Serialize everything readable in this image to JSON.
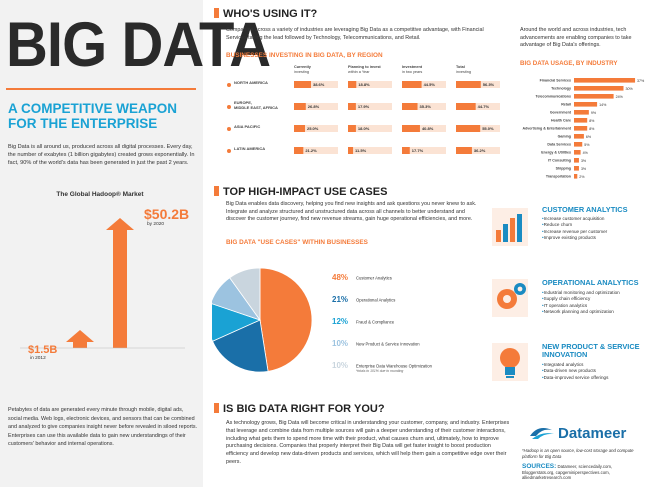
{
  "header": {
    "title": "BIG DATA",
    "subtitle_line1": "A COMPETITIVE WEAPON",
    "subtitle_line2": "FOR THE ENTERPRISE",
    "intro": "Big Data is all around us, produced across all digital processes. Every day, the number of exabytes (1 billion gigabytes) created grows exponentially. In fact, 90% of the world's data has been generated in just the past 2 years."
  },
  "hadoop": {
    "title": "The Global Hadoop® Market",
    "big_value": "$50.2B",
    "big_note": "by 2020",
    "small_value": "$1.5B",
    "small_note": "in 2012"
  },
  "left_bottom_text": "Petabytes of data are generated every minute through mobile, digital ads, social media. Web logs, electronic devices, and sensors that can be combined and analyzed to give companies insight never before revealed in siloed reports. Enterprises can use this available data to gain new understandings of their customers' behavior and internal operations.",
  "whos_using": {
    "title": "WHO'S USING IT?",
    "text": "Companies across a variety of industries are leveraging Big Data as a competitive advantage, with Financial Services taking the lead followed by Technology, Telecommunications, and Retail.",
    "right_text": "Around the world and across industries, tech advancements are enabling companies to take advantage of Big Data's offerings.",
    "region_title": "BUSINESSES INVESTING IN BIG DATA, BY REGION",
    "columns": [
      "Currently\ninvesting",
      "Planning to invest\nwithin a Year",
      "Investment\nin two years",
      "Total\ninvesting"
    ],
    "rows": [
      {
        "region": "NORTH AMERICA",
        "values": [
          "38.6%",
          "18.8%",
          "44.5%",
          "56.3%"
        ]
      },
      {
        "region": "EUROPE, MIDDLE EAST, AFRICA",
        "values": [
          "26.8%",
          "17.9%",
          "35.3%",
          "44.7%"
        ]
      },
      {
        "region": "ASIA PACIFIC",
        "values": [
          "25.0%",
          "18.0%",
          "40.8%",
          "55.0%"
        ]
      },
      {
        "region": "LATIN AMERICA",
        "values": [
          "21.2%",
          "11.5%",
          "17.7%",
          "36.2%"
        ]
      }
    ]
  },
  "usage": {
    "title": "BIG DATA USAGE, BY INDUSTRY"
  },
  "chart_data": [
    {
      "type": "bar",
      "title": "The Global Hadoop® Market",
      "categories": [
        "2012",
        "2020"
      ],
      "values": [
        1.5,
        50.2
      ],
      "ylabel": "",
      "xlabel": ""
    },
    {
      "type": "bar",
      "title": "BUSINESSES INVESTING IN BIG DATA, BY REGION",
      "categories": [
        "NORTH AMERICA",
        "EUROPE, MIDDLE EAST, AFRICA",
        "ASIA PACIFIC",
        "LATIN AMERICA"
      ],
      "series": [
        {
          "name": "Currently investing",
          "values": [
            38.6,
            26.8,
            25.0,
            21.2
          ]
        },
        {
          "name": "Planning to invest within a Year",
          "values": [
            18.8,
            17.9,
            18.0,
            11.5
          ]
        },
        {
          "name": "Investment in two years",
          "values": [
            44.5,
            35.3,
            40.8,
            17.7
          ]
        },
        {
          "name": "Total investing",
          "values": [
            56.3,
            44.7,
            55.0,
            36.2
          ]
        }
      ],
      "ylim": [
        0,
        100
      ]
    },
    {
      "type": "bar",
      "title": "BIG DATA USAGE, BY INDUSTRY",
      "categories": [
        "Financial Services",
        "Technology",
        "Telecommunications",
        "Retail",
        "Government",
        "Health Care",
        "Advertising & Entertainment",
        "Gaming",
        "Data Services",
        "Energy & Utilities",
        "IT Consulting",
        "Shipping",
        "Transportation"
      ],
      "values": [
        37,
        30,
        24,
        14,
        9,
        8,
        8,
        6,
        5,
        4,
        3,
        3,
        2
      ],
      "labels": [
        "37%",
        "30%",
        "24%",
        "14%",
        "9%",
        "8%",
        "8%",
        "6%",
        "5%",
        "4%",
        "3%",
        "3%",
        "2%"
      ],
      "ylim": [
        0,
        40
      ]
    },
    {
      "type": "pie",
      "title": "BIG DATA \"USE CASES\" WITHIN BUSINESSES",
      "categories": [
        "Customer Analytics",
        "Operational Analytics",
        "Fraud & Compliance",
        "New Product & Service Innovation",
        "Enterprise Data Warehouse Optimization"
      ],
      "values": [
        48,
        21,
        12,
        10,
        10
      ],
      "labels": [
        "48%",
        "21%",
        "12%",
        "10%",
        "10%"
      ],
      "note": "*totals to 101% due to rounding"
    }
  ],
  "use_cases": {
    "title": "TOP HIGH-IMPACT USE CASES",
    "text": "Big Data enables data discovery, helping you find new insights and ask questions you never knew to ask. Integrate and analyze structured and unstructured data across all channels to better understand and discover the customer journey, find new revenue streams, gain huge operational efficiencies, and more.",
    "chart_title": "BIG DATA \"USE CASES\" WITHIN BUSINESSES"
  },
  "features": [
    {
      "title": "CUSTOMER ANALYTICS",
      "items": [
        "Increase customer acquisition",
        "Reduce churn",
        "Increase revenue per customer",
        "Improve existing products"
      ]
    },
    {
      "title": "OPERATIONAL ANALYTICS",
      "items": [
        "Industrial monitoring and optimization",
        "Supply chain efficiency",
        "IT operation analytics",
        "Network planning and optimization"
      ]
    },
    {
      "title": "NEW PRODUCT & SERVICE INNOVATION",
      "items": [
        "Integrated analytics",
        "Data-driven new products",
        "Data-improved service offerings"
      ]
    }
  ],
  "right_for_you": {
    "title": "IS BIG DATA RIGHT FOR YOU?",
    "text": "As technology grows, Big Data will become critical in understanding your customer, company, and industry. Enterprises that leverage and combine data from multiple sources will gain a deeper understanding of their customer interactions, including what gets them to spend more time with their product, what causes churn and, ultimately, how to improve purchasing decisions. Companies that properly interpret their Big Data will get faster insight to boost production efficiency and develop new data-driven products and services, which will help them gain a competitive edge over their peers."
  },
  "footer": {
    "logo": "Datameer",
    "note": "*Hadoop is an open source, low-cost storage and compute platform for Big Data",
    "sources_label": "SOURCES:",
    "sources": "Datameer, sciencedaily.com, Bloggerstats.org, capgeminiperspectives.com, alliedmarketresearch.com"
  },
  "colors": {
    "orange": "#f47b3a",
    "blue": "#1aa2d4",
    "dark_blue": "#1a6fa8",
    "light_blue": "#9cc3e0",
    "grey_blue": "#c9d5de"
  }
}
